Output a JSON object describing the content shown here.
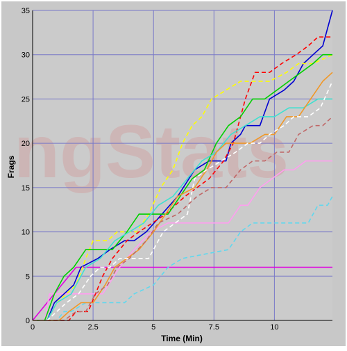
{
  "chart_data": {
    "type": "line",
    "watermark": "ngStats",
    "xlabel": "Time (Min)",
    "ylabel": "Frags",
    "xlim": [
      0,
      12.4
    ],
    "ylim": [
      0,
      35
    ],
    "x_ticks": [
      0,
      2.5,
      5,
      7.5,
      10
    ],
    "x_tick_labels": [
      "0",
      "2.5",
      "5",
      "7.5",
      "10"
    ],
    "y_ticks": [
      0,
      5,
      10,
      15,
      20,
      25,
      30,
      35
    ],
    "y_tick_labels": [
      "0",
      "5",
      "10",
      "15",
      "20",
      "25",
      "30",
      "35"
    ],
    "grid": true,
    "legend": "none",
    "colors": {
      "background": "#c8c8c8",
      "plot_area": "#cbcbcb",
      "grid": "#7878c8",
      "axis": "#000000",
      "watermark": "#d0a6a6"
    },
    "series": [
      {
        "color": "#e000e0",
        "dashed": false,
        "x": [
          0,
          1.8,
          12.4
        ],
        "y": [
          0,
          6,
          6
        ]
      },
      {
        "color": "#60d8ee",
        "dashed": true,
        "x": [
          0,
          1.0,
          1.3,
          1.6,
          2.2,
          3.8,
          4.2,
          5.0,
          5.6,
          6.2,
          8.1,
          8.6,
          9.1,
          11.4,
          11.8,
          12.2,
          12.4
        ],
        "y": [
          0,
          0,
          1,
          1,
          2,
          2,
          3,
          4,
          6,
          7,
          8,
          10,
          11,
          11,
          13,
          13,
          14
        ]
      },
      {
        "color": "#ff9ef0",
        "dashed": false,
        "x": [
          0,
          0.5,
          0.7,
          1.1,
          2.4,
          2.9,
          3.6,
          4.2,
          4.9,
          5.6,
          7.6,
          8.1,
          8.6,
          8.9,
          9.4,
          9.9,
          10.4,
          10.8,
          11.3,
          12.4
        ],
        "y": [
          0,
          0,
          3,
          3,
          3,
          3,
          6,
          8,
          10,
          11,
          11,
          11,
          13,
          13,
          15,
          16,
          17,
          17,
          18,
          18
        ]
      },
      {
        "color": "#0000d0",
        "dashed": false,
        "x": [
          0,
          0.6,
          0.9,
          1.3,
          1.7,
          2.0,
          2.7,
          3.2,
          3.8,
          4.2,
          4.7,
          6.0,
          6.7,
          7.3,
          8.0,
          8.2,
          8.6,
          8.8,
          9.4,
          9.8,
          10.4,
          10.8,
          11.2,
          11.6,
          12.0,
          12.4
        ],
        "y": [
          0,
          0,
          2,
          3,
          4,
          6,
          7,
          8,
          9,
          9,
          10,
          14,
          17,
          18,
          18,
          20,
          21,
          22,
          22,
          25,
          26,
          27,
          29,
          30,
          31,
          35
        ]
      },
      {
        "color": "#ff0000",
        "dashed": true,
        "x": [
          0,
          1.5,
          1.8,
          2.3,
          2.6,
          2.9,
          3.3,
          3.9,
          4.4,
          5.5,
          6.3,
          7.3,
          7.9,
          8.3,
          8.8,
          9.2,
          9.8,
          10.3,
          10.9,
          11.4,
          11.8,
          12.4
        ],
        "y": [
          0,
          0,
          1,
          1,
          3,
          5,
          7,
          9,
          10,
          12,
          14,
          16,
          18,
          20,
          25,
          28,
          28,
          29,
          30,
          31,
          32,
          32
        ]
      },
      {
        "color": "#ffff00",
        "dashed": true,
        "x": [
          0,
          0.6,
          1.0,
          1.8,
          2.2,
          2.5,
          3.1,
          3.5,
          4.3,
          4.8,
          5.3,
          5.8,
          6.2,
          6.6,
          7.0,
          7.4,
          8.0,
          8.6,
          9.2,
          9.8,
          10.5,
          11.0,
          11.6,
          12.4
        ],
        "y": [
          0,
          0,
          2,
          4,
          7,
          9,
          9,
          10,
          10,
          12,
          15,
          17,
          20,
          22,
          23,
          25,
          26,
          27,
          27,
          27,
          28,
          29,
          29,
          30
        ]
      },
      {
        "color": "#00d000",
        "dashed": false,
        "x": [
          0,
          0.5,
          0.9,
          1.3,
          1.7,
          2.2,
          2.8,
          3.3,
          3.9,
          4.4,
          5.0,
          5.6,
          6.1,
          6.6,
          7.1,
          7.6,
          8.1,
          8.6,
          9.1,
          9.6,
          10.1,
          10.6,
          11.1,
          11.6,
          12.0,
          12.4
        ],
        "y": [
          0,
          0,
          3,
          5,
          6,
          8,
          8,
          8,
          10,
          12,
          12,
          12,
          14,
          16,
          17,
          20,
          22,
          23,
          25,
          25,
          26,
          27,
          28,
          29,
          30,
          30
        ]
      },
      {
        "color": "#40e0d0",
        "dashed": false,
        "x": [
          0,
          0.6,
          1.0,
          1.6,
          2.2,
          2.8,
          3.4,
          4.0,
          4.6,
          5.2,
          5.8,
          6.4,
          7.0,
          7.6,
          8.2,
          8.8,
          9.4,
          10.0,
          10.6,
          11.2,
          11.8,
          12.4
        ],
        "y": [
          0,
          0,
          2,
          3,
          6,
          7,
          9,
          10,
          11,
          13,
          14,
          16,
          18,
          19,
          21,
          22,
          23,
          23,
          24,
          24,
          25,
          25
        ]
      },
      {
        "color": "#f09828",
        "dashed": false,
        "x": [
          0,
          1.1,
          1.5,
          2.0,
          2.5,
          3.0,
          3.4,
          3.9,
          4.4,
          5.0,
          5.5,
          6.0,
          6.7,
          7.2,
          7.6,
          8.0,
          8.6,
          9.0,
          9.6,
          10.0,
          10.5,
          11.0,
          11.5,
          12.0,
          12.4
        ],
        "y": [
          0,
          0,
          1,
          2,
          2,
          4,
          6,
          7,
          8,
          10,
          12,
          14,
          15,
          17,
          19,
          20,
          20,
          20,
          21,
          21,
          23,
          23,
          25,
          27,
          28
        ]
      },
      {
        "color": "#ffffff",
        "dashed": true,
        "x": [
          0,
          0.6,
          1.0,
          1.4,
          1.9,
          2.4,
          2.8,
          3.2,
          3.6,
          4.0,
          4.8,
          5.4,
          5.9,
          6.4,
          6.7,
          7.2,
          7.8,
          8.4,
          8.9,
          9.4,
          9.8,
          10.4,
          10.8,
          11.4,
          11.9,
          12.4
        ],
        "y": [
          0,
          0,
          1,
          2,
          3,
          5,
          6,
          6,
          7,
          7,
          7,
          10,
          11,
          12,
          16,
          17,
          18,
          19,
          20,
          20,
          21,
          22,
          23,
          23,
          24,
          27
        ]
      },
      {
        "color": "#c06868",
        "dashed": true,
        "x": [
          0,
          1.3,
          1.8,
          2.2,
          2.6,
          3.1,
          3.5,
          4.0,
          4.7,
          5.2,
          6.0,
          6.8,
          7.4,
          8.0,
          8.6,
          9.1,
          9.6,
          10.1,
          10.6,
          11.0,
          11.6,
          12.0,
          12.4
        ],
        "y": [
          0,
          0,
          1,
          1,
          3,
          4,
          6,
          7,
          9,
          11,
          12,
          14,
          15,
          15,
          17,
          18,
          18,
          19,
          19,
          21,
          22,
          22,
          23
        ]
      }
    ]
  }
}
